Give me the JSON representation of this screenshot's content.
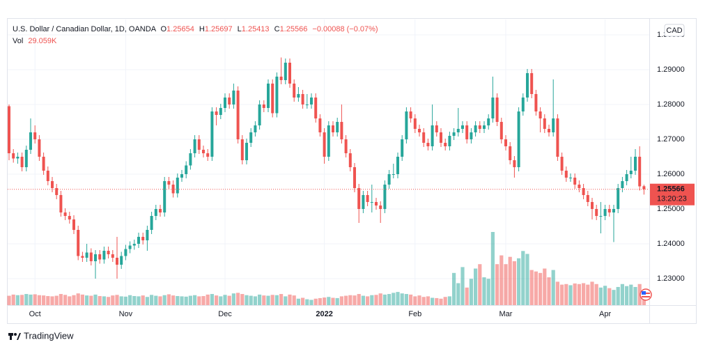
{
  "chart_data": {
    "type": "candlestick",
    "title": "U.S. Dollar / Canadian Dollar, 1D, OANDA",
    "ohlc_labels": [
      "O",
      "H",
      "L",
      "C"
    ],
    "change": "−0.00088 (−0.07%)",
    "volume_label": "Vol",
    "volume_value_label": "29.059K",
    "currency": "CAD",
    "countdown": "13:20:23",
    "branding": "TradingView",
    "up_color": "#26a69a",
    "down_color": "#ef5350",
    "grid": true,
    "ylim": [
      1.2224,
      1.3044
    ],
    "yticks": [
      {
        "value": 1.23,
        "label": "1.23000"
      },
      {
        "value": 1.24,
        "label": "1.24000"
      },
      {
        "value": 1.25,
        "label": "1.25000"
      },
      {
        "value": 1.26,
        "label": "1.26000"
      },
      {
        "value": 1.27,
        "label": "1.27000"
      },
      {
        "value": 1.28,
        "label": "1.28000"
      },
      {
        "value": 1.29,
        "label": "1.29000"
      },
      {
        "value": 1.3,
        "label": "1.30000"
      }
    ],
    "xticks": [
      {
        "value": 6,
        "label": "Oct"
      },
      {
        "value": 27,
        "label": "Nov"
      },
      {
        "value": 50,
        "label": "Dec"
      },
      {
        "value": 73,
        "label": "2022"
      },
      {
        "value": 94,
        "label": "Feb"
      },
      {
        "value": 115,
        "label": "Mar"
      },
      {
        "value": 138,
        "label": "Apr"
      }
    ],
    "candles": [
      [
        1.2795,
        1.28,
        1.264,
        1.266
      ],
      [
        1.266,
        1.2672,
        1.2633,
        1.2645
      ],
      [
        1.2645,
        1.2662,
        1.263,
        1.265
      ],
      [
        1.265,
        1.2662,
        1.2608,
        1.262
      ],
      [
        1.262,
        1.2682,
        1.2608,
        1.267
      ],
      [
        1.267,
        1.276,
        1.2658,
        1.272
      ],
      [
        1.272,
        1.274,
        1.2688,
        1.27
      ],
      [
        1.27,
        1.2712,
        1.2638,
        1.265
      ],
      [
        1.265,
        1.2662,
        1.2598,
        1.261
      ],
      [
        1.261,
        1.2622,
        1.2568,
        1.258
      ],
      [
        1.258,
        1.2592,
        1.2548,
        1.256
      ],
      [
        1.256,
        1.2572,
        1.2528,
        1.254
      ],
      [
        1.254,
        1.2552,
        1.2478,
        1.249
      ],
      [
        1.249,
        1.2502,
        1.2468,
        1.248
      ],
      [
        1.248,
        1.2492,
        1.2458,
        1.247
      ],
      [
        1.247,
        1.2482,
        1.2428,
        1.244
      ],
      [
        1.244,
        1.2452,
        1.2353,
        1.2365
      ],
      [
        1.2365,
        1.2377,
        1.2348,
        1.236
      ],
      [
        1.236,
        1.24,
        1.2348,
        1.2375
      ],
      [
        1.2375,
        1.2387,
        1.2338,
        1.235
      ],
      [
        1.235,
        1.2382,
        1.23,
        1.237
      ],
      [
        1.237,
        1.2382,
        1.2343,
        1.2355
      ],
      [
        1.2355,
        1.2392,
        1.2343,
        1.238
      ],
      [
        1.238,
        1.2392,
        1.2358,
        1.237
      ],
      [
        1.237,
        1.2382,
        1.2348,
        1.236
      ],
      [
        1.236,
        1.242,
        1.23,
        1.234
      ],
      [
        1.234,
        1.2377,
        1.2328,
        1.2365
      ],
      [
        1.2365,
        1.2397,
        1.2353,
        1.2385
      ],
      [
        1.2385,
        1.2407,
        1.2373,
        1.2395
      ],
      [
        1.2395,
        1.2412,
        1.2383,
        1.24
      ],
      [
        1.24,
        1.2432,
        1.2388,
        1.242
      ],
      [
        1.242,
        1.2432,
        1.2398,
        1.241
      ],
      [
        1.241,
        1.2452,
        1.238,
        1.244
      ],
      [
        1.244,
        1.2492,
        1.2428,
        1.248
      ],
      [
        1.248,
        1.2512,
        1.2468,
        1.25
      ],
      [
        1.25,
        1.2512,
        1.2478,
        1.249
      ],
      [
        1.249,
        1.2592,
        1.2478,
        1.258
      ],
      [
        1.258,
        1.2592,
        1.2558,
        1.257
      ],
      [
        1.257,
        1.2582,
        1.2533,
        1.2545
      ],
      [
        1.2545,
        1.2602,
        1.2533,
        1.259
      ],
      [
        1.259,
        1.2612,
        1.2578,
        1.26
      ],
      [
        1.26,
        1.2637,
        1.2588,
        1.2625
      ],
      [
        1.2625,
        1.2672,
        1.2613,
        1.266
      ],
      [
        1.266,
        1.2712,
        1.2648,
        1.27
      ],
      [
        1.27,
        1.2712,
        1.2658,
        1.267
      ],
      [
        1.267,
        1.2682,
        1.2648,
        1.266
      ],
      [
        1.266,
        1.2672,
        1.2638,
        1.265
      ],
      [
        1.265,
        1.2792,
        1.2638,
        1.278
      ],
      [
        1.278,
        1.2792,
        1.274,
        1.277
      ],
      [
        1.277,
        1.2802,
        1.2758,
        1.279
      ],
      [
        1.279,
        1.2832,
        1.2778,
        1.282
      ],
      [
        1.282,
        1.2832,
        1.2788,
        1.28
      ],
      [
        1.28,
        1.286,
        1.2788,
        1.284
      ],
      [
        1.284,
        1.2852,
        1.2688,
        1.27
      ],
      [
        1.27,
        1.2712,
        1.2628,
        1.264
      ],
      [
        1.264,
        1.2702,
        1.2628,
        1.269
      ],
      [
        1.269,
        1.2732,
        1.2678,
        1.272
      ],
      [
        1.272,
        1.2752,
        1.2708,
        1.274
      ],
      [
        1.274,
        1.2812,
        1.2728,
        1.28
      ],
      [
        1.28,
        1.2812,
        1.2778,
        1.279
      ],
      [
        1.279,
        1.2872,
        1.2778,
        1.286
      ],
      [
        1.286,
        1.2872,
        1.2763,
        1.2775
      ],
      [
        1.2775,
        1.2892,
        1.2763,
        1.288
      ],
      [
        1.288,
        1.2935,
        1.2858,
        1.287
      ],
      [
        1.287,
        1.2932,
        1.2858,
        1.292
      ],
      [
        1.292,
        1.2932,
        1.2848,
        1.286
      ],
      [
        1.286,
        1.2872,
        1.2808,
        1.282
      ],
      [
        1.282,
        1.285,
        1.2808,
        1.283
      ],
      [
        1.283,
        1.2842,
        1.2788,
        1.28
      ],
      [
        1.28,
        1.283,
        1.2788,
        1.28
      ],
      [
        1.28,
        1.2832,
        1.2788,
        1.282
      ],
      [
        1.282,
        1.2832,
        1.2748,
        1.276
      ],
      [
        1.276,
        1.2772,
        1.2708,
        1.272
      ],
      [
        1.272,
        1.2732,
        1.263,
        1.265
      ],
      [
        1.265,
        1.2752,
        1.2638,
        1.274
      ],
      [
        1.274,
        1.2752,
        1.2708,
        1.272
      ],
      [
        1.272,
        1.2762,
        1.2708,
        1.275
      ],
      [
        1.275,
        1.28,
        1.2688,
        1.27
      ],
      [
        1.27,
        1.2712,
        1.2648,
        1.266
      ],
      [
        1.266,
        1.2672,
        1.2608,
        1.262
      ],
      [
        1.262,
        1.2632,
        1.2548,
        1.256
      ],
      [
        1.256,
        1.2572,
        1.246,
        1.25
      ],
      [
        1.25,
        1.2552,
        1.2488,
        1.254
      ],
      [
        1.254,
        1.2552,
        1.2508,
        1.252
      ],
      [
        1.252,
        1.257,
        1.249,
        1.252
      ],
      [
        1.252,
        1.2532,
        1.2498,
        1.251
      ],
      [
        1.251,
        1.2522,
        1.246,
        1.25
      ],
      [
        1.25,
        1.2582,
        1.2488,
        1.257
      ],
      [
        1.257,
        1.2612,
        1.2558,
        1.26
      ],
      [
        1.26,
        1.263,
        1.2588,
        1.26
      ],
      [
        1.26,
        1.2662,
        1.2588,
        1.265
      ],
      [
        1.265,
        1.2712,
        1.2638,
        1.27
      ],
      [
        1.27,
        1.2792,
        1.2688,
        1.278
      ],
      [
        1.278,
        1.2792,
        1.2748,
        1.276
      ],
      [
        1.276,
        1.2772,
        1.2718,
        1.273
      ],
      [
        1.273,
        1.2742,
        1.2708,
        1.272
      ],
      [
        1.272,
        1.2732,
        1.2678,
        1.269
      ],
      [
        1.269,
        1.2702,
        1.2668,
        1.268
      ],
      [
        1.268,
        1.28,
        1.2668,
        1.274
      ],
      [
        1.274,
        1.2752,
        1.2708,
        1.272
      ],
      [
        1.272,
        1.2732,
        1.2678,
        1.269
      ],
      [
        1.269,
        1.2702,
        1.2668,
        1.268
      ],
      [
        1.268,
        1.2722,
        1.2668,
        1.271
      ],
      [
        1.271,
        1.2732,
        1.2698,
        1.272
      ],
      [
        1.272,
        1.279,
        1.2708,
        1.273
      ],
      [
        1.273,
        1.2752,
        1.2718,
        1.274
      ],
      [
        1.274,
        1.2752,
        1.2688,
        1.27
      ],
      [
        1.27,
        1.2732,
        1.2688,
        1.272
      ],
      [
        1.272,
        1.2752,
        1.2708,
        1.274
      ],
      [
        1.274,
        1.2752,
        1.2718,
        1.273
      ],
      [
        1.273,
        1.2752,
        1.2718,
        1.274
      ],
      [
        1.274,
        1.2772,
        1.2728,
        1.276
      ],
      [
        1.276,
        1.288,
        1.2748,
        1.282
      ],
      [
        1.282,
        1.2832,
        1.2738,
        1.275
      ],
      [
        1.275,
        1.2762,
        1.2688,
        1.27
      ],
      [
        1.27,
        1.2712,
        1.2668,
        1.268
      ],
      [
        1.268,
        1.2692,
        1.2628,
        1.264
      ],
      [
        1.264,
        1.2652,
        1.259,
        1.262
      ],
      [
        1.262,
        1.2792,
        1.2608,
        1.278
      ],
      [
        1.278,
        1.2832,
        1.2768,
        1.282
      ],
      [
        1.282,
        1.2902,
        1.2808,
        1.289
      ],
      [
        1.289,
        1.2902,
        1.2818,
        1.283
      ],
      [
        1.283,
        1.2842,
        1.2768,
        1.278
      ],
      [
        1.278,
        1.2792,
        1.272,
        1.276
      ],
      [
        1.276,
        1.2772,
        1.2718,
        1.273
      ],
      [
        1.273,
        1.2742,
        1.2708,
        1.272
      ],
      [
        1.272,
        1.2872,
        1.2708,
        1.276
      ],
      [
        1.276,
        1.2772,
        1.2638,
        1.265
      ],
      [
        1.265,
        1.2662,
        1.2598,
        1.261
      ],
      [
        1.261,
        1.2622,
        1.2578,
        1.259
      ],
      [
        1.259,
        1.2602,
        1.2578,
        1.259
      ],
      [
        1.259,
        1.2602,
        1.2558,
        1.257
      ],
      [
        1.257,
        1.2582,
        1.2548,
        1.256
      ],
      [
        1.256,
        1.2572,
        1.2528,
        1.254
      ],
      [
        1.254,
        1.2552,
        1.2508,
        1.252
      ],
      [
        1.252,
        1.2532,
        1.247,
        1.25
      ],
      [
        1.25,
        1.2512,
        1.2468,
        1.248
      ],
      [
        1.248,
        1.252,
        1.243,
        1.248
      ],
      [
        1.248,
        1.2512,
        1.2468,
        1.25
      ],
      [
        1.25,
        1.2512,
        1.2478,
        1.249
      ],
      [
        1.249,
        1.2512,
        1.2405,
        1.25
      ],
      [
        1.25,
        1.2572,
        1.2488,
        1.256
      ],
      [
        1.256,
        1.2592,
        1.2548,
        1.258
      ],
      [
        1.258,
        1.2612,
        1.2568,
        1.26
      ],
      [
        1.26,
        1.265,
        1.2588,
        1.261
      ],
      [
        1.261,
        1.2672,
        1.2598,
        1.265
      ],
      [
        1.265,
        1.268,
        1.2553,
        1.2565
      ],
      [
        1.25654,
        1.25697,
        1.25413,
        1.25566
      ]
    ],
    "volume": [
      32,
      36,
      34,
      35,
      38,
      36,
      37,
      34,
      33,
      31,
      30,
      32,
      38,
      35,
      30,
      34,
      40,
      36,
      33,
      32,
      36,
      31,
      30,
      28,
      33,
      35,
      30,
      29,
      34,
      31,
      30,
      33,
      28,
      35,
      32,
      30,
      34,
      37,
      33,
      31,
      30,
      29,
      32,
      34,
      30,
      31,
      36,
      38,
      33,
      30,
      35,
      32,
      40,
      42,
      38,
      34,
      32,
      30,
      36,
      33,
      32,
      35,
      34,
      38,
      30,
      36,
      33,
      22,
      25,
      20,
      18,
      22,
      24,
      26,
      28,
      25,
      24,
      30,
      32,
      34,
      33,
      38,
      32,
      30,
      34,
      35,
      40,
      36,
      38,
      42,
      45,
      40,
      38,
      36,
      30,
      33,
      28,
      30,
      25,
      24,
      22,
      28,
      30,
      110,
      75,
      130,
      60,
      90,
      125,
      140,
      95,
      90,
      250,
      140,
      170,
      140,
      165,
      150,
      160,
      185,
      175,
      120,
      115,
      110,
      125,
      95,
      120,
      80,
      70,
      72,
      68,
      74,
      72,
      75,
      70,
      80,
      72,
      60,
      66,
      58,
      52,
      62,
      72,
      65,
      70,
      62,
      72,
      29.059
    ]
  }
}
